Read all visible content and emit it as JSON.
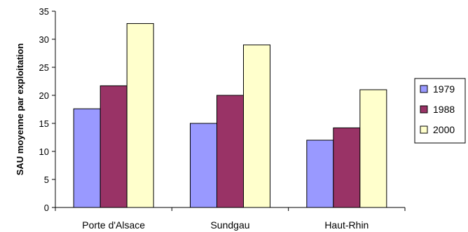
{
  "chart_data": {
    "type": "bar",
    "title": "",
    "xlabel": "",
    "ylabel": "SAU moyenne par exploitation",
    "categories": [
      "Porte d'Alsace",
      "Sundgau",
      "Haut-Rhin"
    ],
    "series": [
      {
        "name": "1979",
        "values": [
          17.6,
          15.0,
          12.0
        ],
        "color": "#9999ff"
      },
      {
        "name": "1988",
        "values": [
          21.7,
          20.0,
          14.2
        ],
        "color": "#993366"
      },
      {
        "name": "2000",
        "values": [
          32.8,
          29.0,
          21.0
        ],
        "color": "#ffffcc"
      }
    ],
    "ylim": [
      0,
      35
    ],
    "yticks": [
      0,
      5,
      10,
      15,
      20,
      25,
      30,
      35
    ],
    "grid": false,
    "legend_position": "right"
  }
}
